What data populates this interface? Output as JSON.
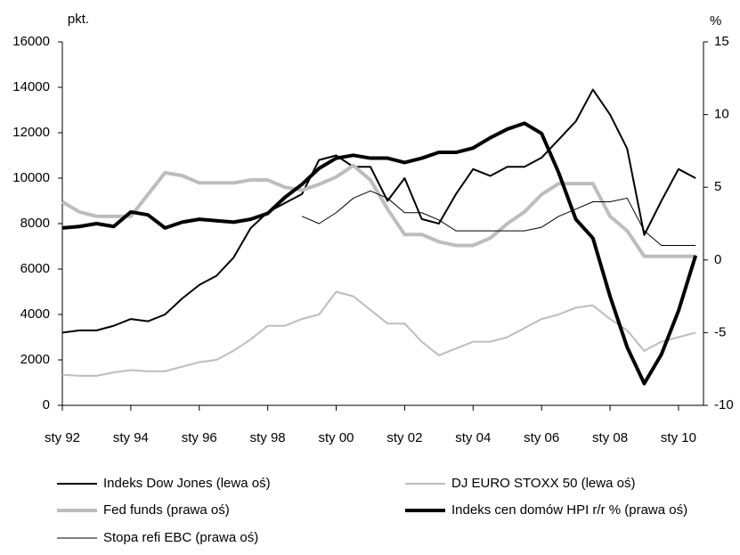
{
  "chart_data": {
    "type": "line",
    "ylabel": "pkt.",
    "y2label": "%",
    "x": [
      1992,
      1992.5,
      1993,
      1993.5,
      1994,
      1994.5,
      1995,
      1995.5,
      1996,
      1996.5,
      1997,
      1997.5,
      1998,
      1998.5,
      1999,
      1999.5,
      2000,
      2000.5,
      2001,
      2001.5,
      2002,
      2002.5,
      2003,
      2003.5,
      2004,
      2004.5,
      2005,
      2005.5,
      2006,
      2006.5,
      2007,
      2007.5,
      2008,
      2008.5,
      2009,
      2009.5,
      2010,
      2010.5
    ],
    "xlim": [
      1992,
      2010.73
    ],
    "xticks": [
      {
        "value": 1992,
        "label": "sty 92"
      },
      {
        "value": 1994,
        "label": "sty 94"
      },
      {
        "value": 1996,
        "label": "sty 96"
      },
      {
        "value": 1998,
        "label": "sty 98"
      },
      {
        "value": 2000,
        "label": "sty 00"
      },
      {
        "value": 2002,
        "label": "sty 02"
      },
      {
        "value": 2004,
        "label": "sty 04"
      },
      {
        "value": 2006,
        "label": "sty 06"
      },
      {
        "value": 2008,
        "label": "sty 08"
      },
      {
        "value": 2010,
        "label": "sty 10"
      }
    ],
    "ylim": [
      0,
      16000
    ],
    "yticks": [
      0,
      2000,
      4000,
      6000,
      8000,
      10000,
      12000,
      14000,
      16000
    ],
    "y2lim": [
      -10,
      15
    ],
    "y2ticks": [
      -10,
      -5,
      0,
      5,
      10,
      15
    ],
    "series": [
      {
        "name": "Indeks Dow Jones (lewa oś)",
        "color": "#000000",
        "width": 2,
        "axis": "y",
        "values": [
          3200,
          3300,
          3300,
          3500,
          3800,
          3700,
          4000,
          4700,
          5300,
          5700,
          6500,
          7800,
          8500,
          8900,
          9300,
          10800,
          11000,
          10500,
          10500,
          9000,
          10000,
          8200,
          8000,
          9300,
          10400,
          10100,
          10500,
          10500,
          10900,
          11700,
          12500,
          13900,
          12800,
          11300,
          7500,
          9000,
          10400,
          10000
        ]
      },
      {
        "name": "DJ EURO STOXX 50 (lewa oś)",
        "color": "#bdbdbd",
        "width": 2,
        "axis": "y",
        "values": [
          1350,
          1300,
          1300,
          1450,
          1550,
          1500,
          1500,
          1700,
          1900,
          2000,
          2400,
          2900,
          3500,
          3500,
          3800,
          4000,
          5000,
          4800,
          4200,
          3600,
          3600,
          2800,
          2200,
          2500,
          2800,
          2800,
          3000,
          3400,
          3800,
          4000,
          4300,
          4400,
          3800,
          3300,
          2400,
          2800,
          3000,
          3200
        ]
      },
      {
        "name": "Fed funds (prawa oś)",
        "color": "#bdbdbd",
        "width": 4,
        "axis": "y2",
        "values": [
          4,
          3.3,
          3,
          3,
          3,
          4.5,
          6,
          5.8,
          5.3,
          5.3,
          5.3,
          5.5,
          5.5,
          5,
          4.8,
          5.2,
          5.7,
          6.5,
          5.5,
          3.5,
          1.75,
          1.75,
          1.25,
          1,
          1,
          1.5,
          2.5,
          3.3,
          4.5,
          5.25,
          5.25,
          5.25,
          3,
          2,
          0.25,
          0.25,
          0.25,
          0.25
        ]
      },
      {
        "name": "Indeks cen domów HPI r/r % (prawa oś)",
        "color": "#000000",
        "width": 4,
        "axis": "y2",
        "values": [
          2.2,
          2.3,
          2.5,
          2.3,
          3.3,
          3.1,
          2.2,
          2.6,
          2.8,
          2.7,
          2.6,
          2.8,
          3.2,
          4.3,
          5.2,
          6.3,
          7,
          7.2,
          7,
          7,
          6.7,
          7,
          7.4,
          7.4,
          7.7,
          8.4,
          9,
          9.4,
          8.7,
          6,
          2.8,
          1.5,
          -2.5,
          -6,
          -8.5,
          -6.5,
          -3.5,
          0.3
        ]
      },
      {
        "name": "Stopa refi EBC (prawa oś)",
        "color": "#000000",
        "width": 1,
        "axis": "y2",
        "values": [
          null,
          null,
          null,
          null,
          null,
          null,
          null,
          null,
          null,
          null,
          null,
          null,
          null,
          null,
          3,
          2.5,
          3.25,
          4.25,
          4.75,
          4.25,
          3.25,
          3.25,
          2.75,
          2,
          2,
          2,
          2,
          2,
          2.25,
          3,
          3.5,
          4,
          4,
          4.25,
          2,
          1,
          1,
          1
        ]
      }
    ]
  }
}
